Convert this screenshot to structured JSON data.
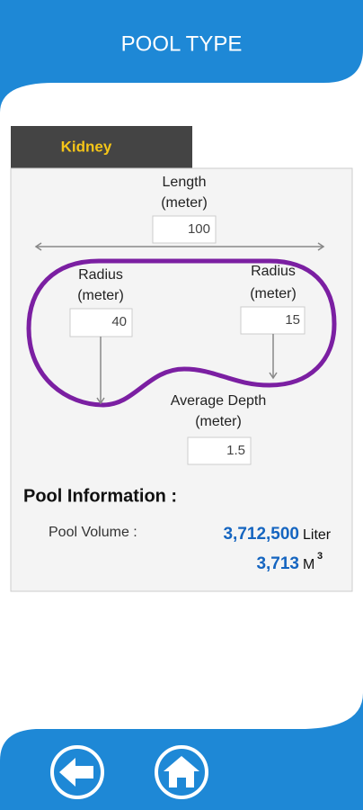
{
  "header": {
    "title": "POOL TYPE"
  },
  "tab": {
    "label": "Kidney"
  },
  "form": {
    "length": {
      "label": "Length",
      "unit": "(meter)",
      "value": "100"
    },
    "radius_left": {
      "label": "Radius",
      "unit": "(meter)",
      "value": "40"
    },
    "radius_right": {
      "label": "Radius",
      "unit": "(meter)",
      "value": "15"
    },
    "depth": {
      "label": "Average Depth",
      "unit": "(meter)",
      "value": "1.5"
    }
  },
  "info": {
    "title": "Pool Information :",
    "volume_label": "Pool Volume :",
    "liters": "3,712,500",
    "liter_unit": "Liter",
    "cubic": "3,713",
    "cubic_unit": "M",
    "cubic_exp": "3"
  }
}
